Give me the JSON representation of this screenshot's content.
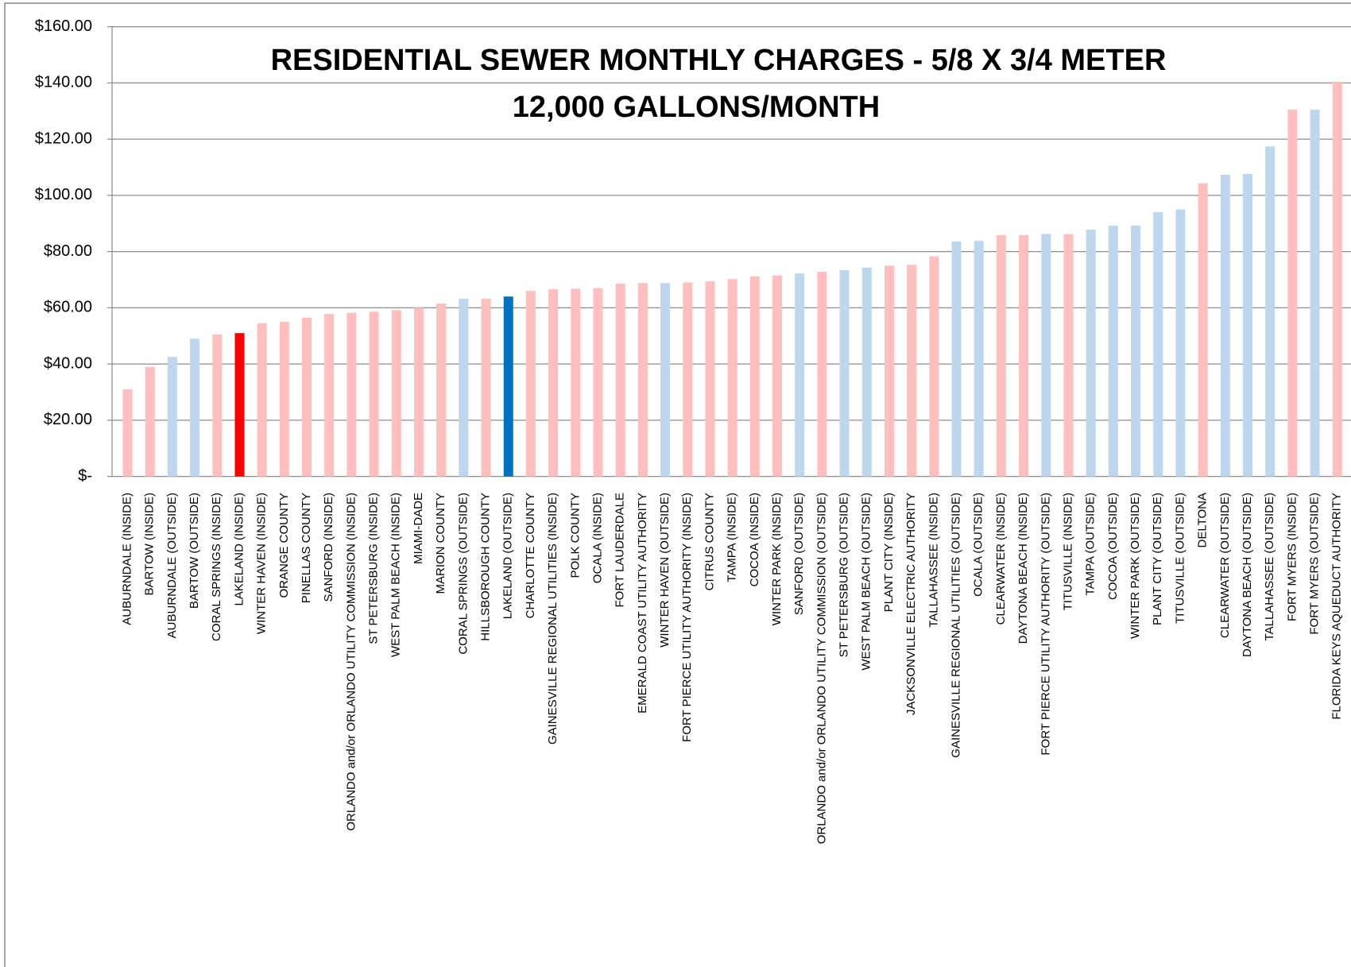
{
  "chart_data": {
    "type": "bar",
    "title": "RESIDENTIAL SEWER MONTHLY CHARGES - 5/8 X 3/4 METER",
    "subtitle": "12,000 GALLONS/MONTH",
    "categories": [
      "AUBURNDALE (INSIDE)",
      "BARTOW (INSIDE)",
      "AUBURNDALE (OUTSIDE)",
      "BARTOW (OUTSIDE)",
      "CORAL SPRINGS (INSIDE)",
      "LAKELAND (INSIDE)",
      "WINTER HAVEN (INSIDE)",
      "ORANGE COUNTY",
      "PINELLAS COUNTY",
      "SANFORD (INSIDE)",
      "ORLANDO and/or ORLANDO UTILITY COMMISSION (INSIDE)",
      "ST PETERSBURG (INSIDE)",
      "WEST PALM BEACH (INSIDE)",
      "MIAMI-DADE",
      "MARION COUNTY",
      "CORAL SPRINGS (OUTSIDE)",
      "HILLSBOROUGH COUNTY",
      "LAKELAND (OUTSIDE)",
      "CHARLOTTE COUNTY",
      "GAINESVILLE REGIONAL UTILITIES (INSIDE)",
      "POLK COUNTY",
      "OCALA (INSIDE)",
      "FORT LAUDERDALE",
      "EMERALD COAST UTILITY AUTHORITY",
      "WINTER HAVEN (OUTSIDE)",
      "FORT PIERCE UTILITY AUTHORITY (INSIDE)",
      "CITRUS COUNTY",
      "TAMPA (INSIDE)",
      "COCOA (INSIDE)",
      "WINTER PARK (INSIDE)",
      "SANFORD (OUTSIDE)",
      "ORLANDO and/or ORLANDO UTILITY COMMISSION (OUTSIDE)",
      "ST PETERSBURG (OUTSIDE)",
      "WEST PALM BEACH (OUTSIDE)",
      "PLANT CITY (INSIDE)",
      "JACKSONVILLE ELECTRIC AUTHORITY",
      "TALLAHASSEE (INSIDE)",
      "GAINESVILLE REGIONAL UTILITIES (OUTSIDE)",
      "OCALA (OUTSIDE)",
      "CLEARWATER (INSIDE)",
      "DAYTONA BEACH (INSIDE)",
      "FORT PIERCE UTILITY AUTHORITY (OUTSIDE)",
      "TITUSVILLE (INSIDE)",
      "TAMPA (OUTSIDE)",
      "COCOA (OUTSIDE)",
      "WINTER PARK (OUTSIDE)",
      "PLANT CITY (OUTSIDE)",
      "TITUSVILLE (OUTSIDE)",
      "DELTONA",
      "CLEARWATER (OUTSIDE)",
      "DAYTONA BEACH (OUTSIDE)",
      "TALLAHASSEE (OUTSIDE)",
      "FORT MYERS (INSIDE)",
      "FORT MYERS (OUTSIDE)",
      "FLORIDA KEYS AQUEDUCT AUTHORITY"
    ],
    "values": [
      31,
      39,
      42.5,
      49,
      50.5,
      51,
      54.5,
      55,
      56.5,
      57.8,
      58.2,
      58.6,
      59.2,
      60,
      61.5,
      63.2,
      63.2,
      64,
      66,
      66.6,
      66.8,
      67,
      68.6,
      68.8,
      68.8,
      69,
      69.4,
      70.2,
      71.2,
      71.5,
      72.2,
      72.8,
      73.4,
      74.3,
      75,
      75.3,
      78.3,
      83.6,
      83.8,
      85.8,
      85.8,
      86.3,
      86.2,
      87.8,
      89.2,
      89.2,
      94,
      95,
      104.3,
      107.3,
      107.6,
      117.4,
      130.5,
      130.5,
      140.4
    ],
    "colors": [
      "#ffbfbf",
      "#ffbfbf",
      "#bdd7ee",
      "#bdd7ee",
      "#ffbfbf",
      "#ff0000",
      "#ffbfbf",
      "#ffbfbf",
      "#ffbfbf",
      "#ffbfbf",
      "#ffbfbf",
      "#ffbfbf",
      "#ffbfbf",
      "#ffbfbf",
      "#ffbfbf",
      "#bdd7ee",
      "#ffbfbf",
      "#0070c0",
      "#ffbfbf",
      "#ffbfbf",
      "#ffbfbf",
      "#ffbfbf",
      "#ffbfbf",
      "#ffbfbf",
      "#bdd7ee",
      "#ffbfbf",
      "#ffbfbf",
      "#ffbfbf",
      "#ffbfbf",
      "#ffbfbf",
      "#bdd7ee",
      "#ffbfbf",
      "#bdd7ee",
      "#bdd7ee",
      "#ffbfbf",
      "#ffbfbf",
      "#ffbfbf",
      "#bdd7ee",
      "#bdd7ee",
      "#ffbfbf",
      "#ffbfbf",
      "#bdd7ee",
      "#ffbfbf",
      "#bdd7ee",
      "#bdd7ee",
      "#bdd7ee",
      "#bdd7ee",
      "#bdd7ee",
      "#ffbfbf",
      "#bdd7ee",
      "#bdd7ee",
      "#bdd7ee",
      "#ffbfbf",
      "#bdd7ee",
      "#ffbfbf"
    ],
    "ylim": [
      0,
      160
    ],
    "yticks": [
      {
        "value": 0,
        "label": "$-"
      },
      {
        "value": 20,
        "label": "$20.00"
      },
      {
        "value": 40,
        "label": "$40.00"
      },
      {
        "value": 60,
        "label": "$60.00"
      },
      {
        "value": 80,
        "label": "$80.00"
      },
      {
        "value": 100,
        "label": "$100.00"
      },
      {
        "value": 120,
        "label": "$120.00"
      },
      {
        "value": 140,
        "label": "$140.00"
      },
      {
        "value": 160,
        "label": "$160.00"
      }
    ],
    "grid": true
  }
}
